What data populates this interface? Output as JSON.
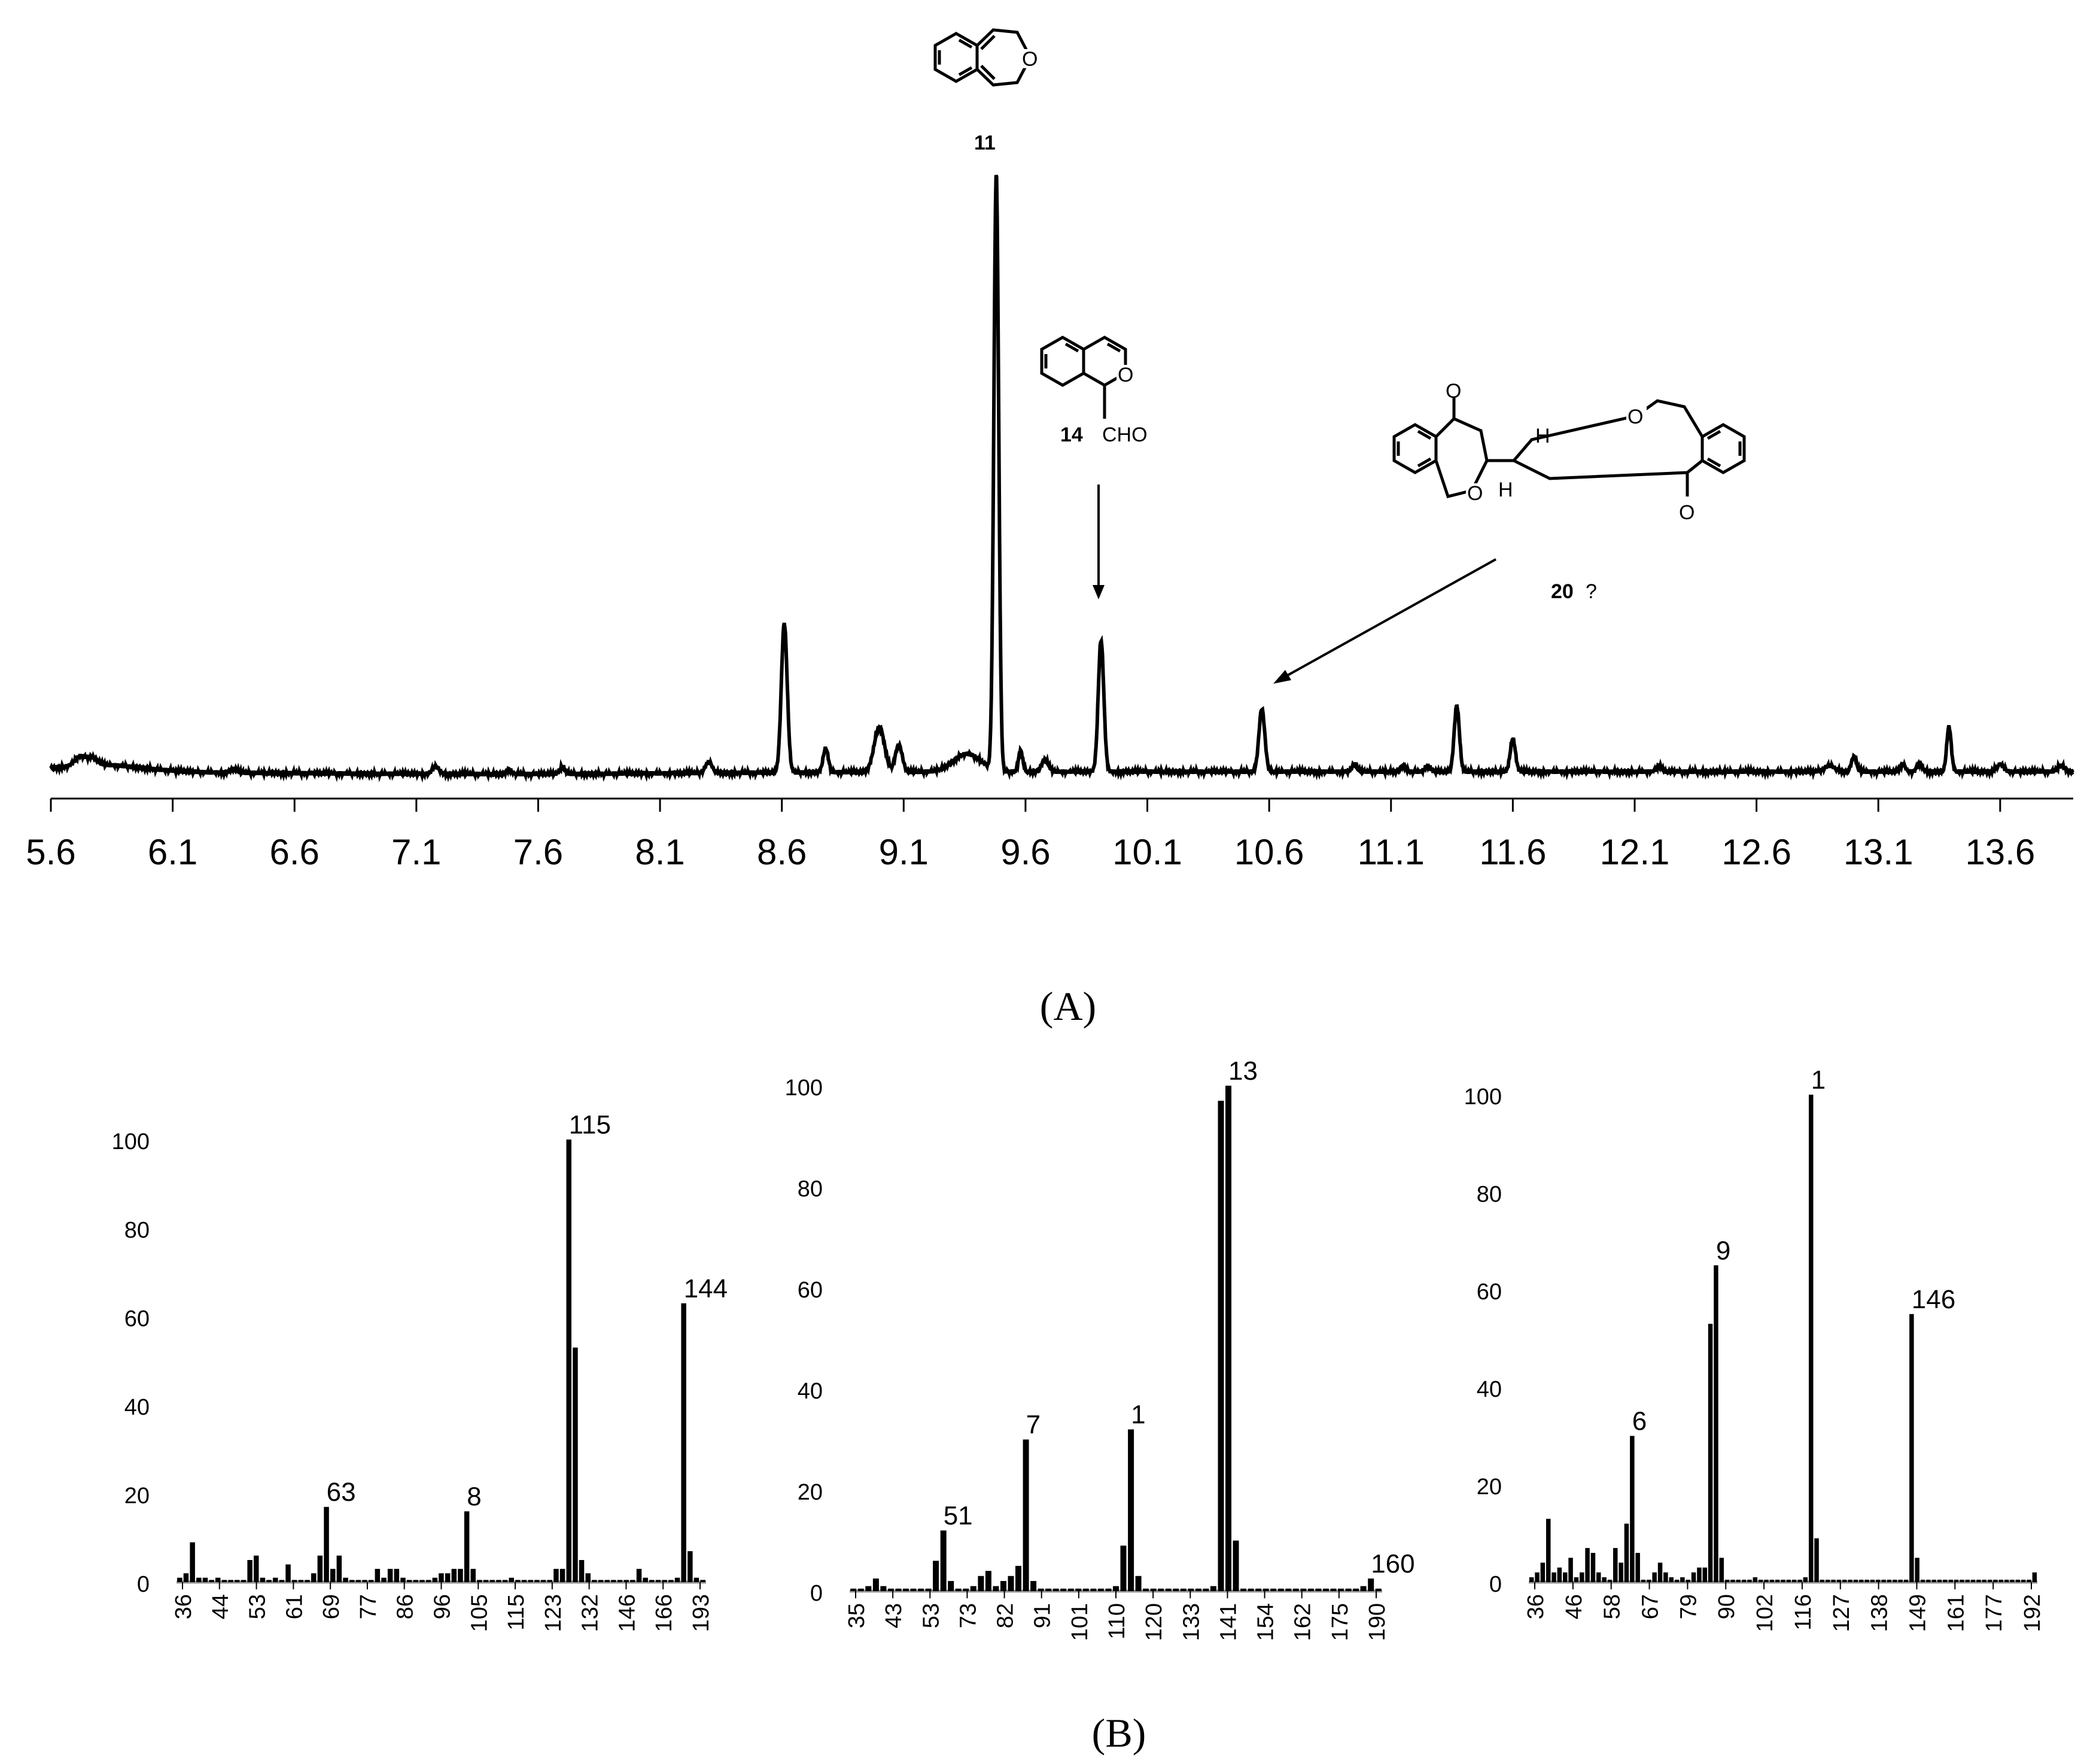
{
  "panel_labels": {
    "a": "(A)",
    "b": "(B)"
  },
  "annotations": {
    "compound_11": "11",
    "compound_14": "14",
    "compound_14_group": "CHO",
    "compound_20": "20",
    "compound_20_query": "?",
    "ring_O": "O",
    "ring_H": "H"
  },
  "chart_data": [
    {
      "type": "line",
      "title": "",
      "xlabel": "",
      "ylabel": "",
      "xlim": [
        5.6,
        13.9
      ],
      "x_ticks": [
        "5.6",
        "6.1",
        "6.6",
        "7.1",
        "7.6",
        "8.1",
        "8.6",
        "9.1",
        "9.6",
        "10.1",
        "10.6",
        "11.1",
        "11.6",
        "12.1",
        "12.6",
        "13.1",
        "13.6"
      ],
      "baseline": 0.025,
      "peaks": [
        {
          "x": 5.72,
          "h": 0.015,
          "w": 0.03
        },
        {
          "x": 5.77,
          "h": 0.012,
          "w": 0.03
        },
        {
          "x": 6.35,
          "h": 0.006,
          "w": 0.02
        },
        {
          "x": 7.18,
          "h": 0.012,
          "w": 0.02
        },
        {
          "x": 7.48,
          "h": 0.008,
          "w": 0.015
        },
        {
          "x": 7.7,
          "h": 0.012,
          "w": 0.015
        },
        {
          "x": 8.3,
          "h": 0.018,
          "w": 0.02
        },
        {
          "x": 8.61,
          "h": 0.25,
          "w": 0.017
        },
        {
          "x": 8.78,
          "h": 0.04,
          "w": 0.015
        },
        {
          "x": 9.0,
          "h": 0.075,
          "w": 0.03
        },
        {
          "x": 9.08,
          "h": 0.045,
          "w": 0.02
        },
        {
          "x": 9.48,
          "h": 1.0,
          "w": 0.014
        },
        {
          "x": 9.36,
          "h": 0.03,
          "w": 0.08
        },
        {
          "x": 9.58,
          "h": 0.035,
          "w": 0.012
        },
        {
          "x": 9.68,
          "h": 0.02,
          "w": 0.02
        },
        {
          "x": 9.91,
          "h": 0.22,
          "w": 0.016
        },
        {
          "x": 10.57,
          "h": 0.105,
          "w": 0.017
        },
        {
          "x": 10.95,
          "h": 0.012,
          "w": 0.015
        },
        {
          "x": 11.15,
          "h": 0.01,
          "w": 0.015
        },
        {
          "x": 11.25,
          "h": 0.01,
          "w": 0.015
        },
        {
          "x": 11.37,
          "h": 0.11,
          "w": 0.015
        },
        {
          "x": 11.6,
          "h": 0.055,
          "w": 0.015
        },
        {
          "x": 12.2,
          "h": 0.01,
          "w": 0.015
        },
        {
          "x": 12.9,
          "h": 0.01,
          "w": 0.03
        },
        {
          "x": 13.0,
          "h": 0.025,
          "w": 0.015
        },
        {
          "x": 13.2,
          "h": 0.012,
          "w": 0.015
        },
        {
          "x": 13.27,
          "h": 0.015,
          "w": 0.015
        },
        {
          "x": 13.39,
          "h": 0.075,
          "w": 0.013
        },
        {
          "x": 13.6,
          "h": 0.012,
          "w": 0.02
        },
        {
          "x": 13.85,
          "h": 0.01,
          "w": 0.02
        }
      ]
    },
    {
      "type": "bar",
      "title": "",
      "xlabel": "",
      "ylabel": "",
      "ylim": [
        0,
        100
      ],
      "y_ticks": [
        "0",
        "20",
        "40",
        "60",
        "80",
        "100"
      ],
      "x_ticks": [
        "36",
        "44",
        "53",
        "61",
        "69",
        "77",
        "86",
        "96",
        "105",
        "115",
        "123",
        "132",
        "146",
        "166",
        "193"
      ],
      "bars": [
        [
          0,
          1
        ],
        [
          1,
          2
        ],
        [
          2,
          9
        ],
        [
          3,
          1
        ],
        [
          4,
          1
        ],
        [
          5,
          0.5
        ],
        [
          6,
          1
        ],
        [
          7,
          0.5
        ],
        [
          8,
          0.5
        ],
        [
          9,
          0.5
        ],
        [
          10,
          0.5
        ],
        [
          11,
          5
        ],
        [
          12,
          6
        ],
        [
          13,
          1
        ],
        [
          14,
          0.5
        ],
        [
          15,
          1
        ],
        [
          16,
          0.5
        ],
        [
          17,
          4
        ],
        [
          18,
          0.5
        ],
        [
          19,
          0.5
        ],
        [
          20,
          0.5
        ],
        [
          21,
          2
        ],
        [
          22,
          6
        ],
        [
          23,
          17
        ],
        [
          24,
          3
        ],
        [
          25,
          6
        ],
        [
          26,
          1
        ],
        [
          27,
          0.5
        ],
        [
          28,
          0.5
        ],
        [
          29,
          0.5
        ],
        [
          30,
          0.5
        ],
        [
          31,
          3
        ],
        [
          32,
          1
        ],
        [
          33,
          3
        ],
        [
          34,
          3
        ],
        [
          35,
          1
        ],
        [
          36,
          0.5
        ],
        [
          37,
          0.5
        ],
        [
          38,
          0.5
        ],
        [
          39,
          0.5
        ],
        [
          40,
          1
        ],
        [
          41,
          2
        ],
        [
          42,
          2
        ],
        [
          43,
          3
        ],
        [
          44,
          3
        ],
        [
          45,
          16
        ],
        [
          46,
          3
        ],
        [
          47,
          0.5
        ],
        [
          48,
          0.5
        ],
        [
          49,
          0.5
        ],
        [
          50,
          0.5
        ],
        [
          51,
          0.5
        ],
        [
          52,
          1
        ],
        [
          53,
          0.5
        ],
        [
          54,
          0.5
        ],
        [
          55,
          0.5
        ],
        [
          56,
          0.5
        ],
        [
          57,
          0.5
        ],
        [
          58,
          0.5
        ],
        [
          59,
          3
        ],
        [
          60,
          3
        ],
        [
          61,
          100
        ],
        [
          62,
          53
        ],
        [
          63,
          5
        ],
        [
          64,
          2
        ],
        [
          65,
          0.5
        ],
        [
          66,
          0.5
        ],
        [
          67,
          0.5
        ],
        [
          68,
          0.5
        ],
        [
          69,
          0.5
        ],
        [
          70,
          0.5
        ],
        [
          71,
          0.5
        ],
        [
          72,
          3
        ],
        [
          73,
          1
        ],
        [
          74,
          0.5
        ],
        [
          75,
          0.5
        ],
        [
          76,
          0.5
        ],
        [
          77,
          0.5
        ],
        [
          78,
          1
        ],
        [
          79,
          63
        ],
        [
          80,
          7
        ],
        [
          81,
          1
        ],
        [
          82,
          0.5
        ]
      ],
      "data_labels": [
        {
          "bar": 23,
          "text": "63"
        },
        {
          "bar": 45,
          "text": "8"
        },
        {
          "bar": 61,
          "text": "115"
        },
        {
          "bar": 79,
          "text": "144"
        }
      ]
    },
    {
      "type": "bar",
      "title": "",
      "xlabel": "",
      "ylabel": "",
      "ylim": [
        0,
        100
      ],
      "y_ticks": [
        "0",
        "20",
        "40",
        "60",
        "80",
        "100"
      ],
      "x_ticks": [
        "35",
        "43",
        "53",
        "73",
        "82",
        "91",
        "101",
        "110",
        "120",
        "133",
        "141",
        "154",
        "162",
        "175",
        "190"
      ],
      "bars": [
        [
          0,
          0.5
        ],
        [
          1,
          0.5
        ],
        [
          2,
          1
        ],
        [
          3,
          2.5
        ],
        [
          4,
          1
        ],
        [
          5,
          0.5
        ],
        [
          6,
          0.5
        ],
        [
          7,
          0.5
        ],
        [
          8,
          0.5
        ],
        [
          9,
          0.5
        ],
        [
          10,
          0.5
        ],
        [
          11,
          6
        ],
        [
          12,
          12
        ],
        [
          13,
          2
        ],
        [
          14,
          0.5
        ],
        [
          15,
          0.5
        ],
        [
          16,
          1
        ],
        [
          17,
          3
        ],
        [
          18,
          4
        ],
        [
          19,
          1
        ],
        [
          20,
          2
        ],
        [
          21,
          3
        ],
        [
          22,
          5
        ],
        [
          23,
          30
        ],
        [
          24,
          2
        ],
        [
          25,
          0.5
        ],
        [
          26,
          0.5
        ],
        [
          27,
          0.5
        ],
        [
          28,
          0.5
        ],
        [
          29,
          0.5
        ],
        [
          30,
          0.5
        ],
        [
          31,
          0.5
        ],
        [
          32,
          0.5
        ],
        [
          33,
          0.5
        ],
        [
          34,
          0.5
        ],
        [
          35,
          1
        ],
        [
          36,
          9
        ],
        [
          37,
          32
        ],
        [
          38,
          3
        ],
        [
          39,
          0.5
        ],
        [
          40,
          0.5
        ],
        [
          41,
          0.5
        ],
        [
          42,
          0.5
        ],
        [
          43,
          0.5
        ],
        [
          44,
          0.5
        ],
        [
          45,
          0.5
        ],
        [
          46,
          0.5
        ],
        [
          47,
          0.5
        ],
        [
          48,
          1
        ],
        [
          49,
          97
        ],
        [
          50,
          100
        ],
        [
          51,
          10
        ],
        [
          52,
          0.5
        ],
        [
          53,
          0.5
        ],
        [
          54,
          0.5
        ],
        [
          55,
          0.5
        ],
        [
          56,
          0.5
        ],
        [
          57,
          0.5
        ],
        [
          58,
          0.5
        ],
        [
          59,
          0.5
        ],
        [
          60,
          0.5
        ],
        [
          61,
          0.5
        ],
        [
          62,
          0.5
        ],
        [
          63,
          0.5
        ],
        [
          64,
          0.5
        ],
        [
          65,
          0.5
        ],
        [
          66,
          0.5
        ],
        [
          67,
          0.5
        ],
        [
          68,
          1
        ],
        [
          69,
          2.5
        ],
        [
          70,
          0.5
        ]
      ],
      "data_labels": [
        {
          "bar": 12,
          "text": "51"
        },
        {
          "bar": 23,
          "text": "7"
        },
        {
          "bar": 37,
          "text": "1"
        },
        {
          "bar": 50,
          "text": "13"
        },
        {
          "bar": 69,
          "text": "160"
        }
      ]
    },
    {
      "type": "bar",
      "title": "",
      "xlabel": "",
      "ylabel": "",
      "ylim": [
        0,
        100
      ],
      "y_ticks": [
        "0",
        "20",
        "40",
        "60",
        "80",
        "100"
      ],
      "x_ticks": [
        "36",
        "46",
        "58",
        "67",
        "79",
        "90",
        "102",
        "116",
        "127",
        "138",
        "149",
        "161",
        "177",
        "192"
      ],
      "bars": [
        [
          0,
          1
        ],
        [
          1,
          2
        ],
        [
          2,
          4
        ],
        [
          3,
          13
        ],
        [
          4,
          2
        ],
        [
          5,
          3
        ],
        [
          6,
          2
        ],
        [
          7,
          5
        ],
        [
          8,
          1
        ],
        [
          9,
          2
        ],
        [
          10,
          7
        ],
        [
          11,
          6
        ],
        [
          12,
          2
        ],
        [
          13,
          1
        ],
        [
          14,
          0.5
        ],
        [
          15,
          7
        ],
        [
          16,
          4
        ],
        [
          17,
          12
        ],
        [
          18,
          30
        ],
        [
          19,
          6
        ],
        [
          20,
          0.5
        ],
        [
          21,
          0.5
        ],
        [
          22,
          2
        ],
        [
          23,
          4
        ],
        [
          24,
          2
        ],
        [
          25,
          1
        ],
        [
          26,
          0.5
        ],
        [
          27,
          1
        ],
        [
          28,
          0.5
        ],
        [
          29,
          2
        ],
        [
          30,
          3
        ],
        [
          31,
          3
        ],
        [
          32,
          53
        ],
        [
          33,
          65
        ],
        [
          34,
          5
        ],
        [
          35,
          0.5
        ],
        [
          36,
          0.5
        ],
        [
          37,
          0.5
        ],
        [
          38,
          0.5
        ],
        [
          39,
          0.5
        ],
        [
          40,
          1
        ],
        [
          41,
          0.5
        ],
        [
          42,
          0.5
        ],
        [
          43,
          0.5
        ],
        [
          44,
          0.5
        ],
        [
          45,
          0.5
        ],
        [
          46,
          0.5
        ],
        [
          47,
          0.5
        ],
        [
          48,
          0.5
        ],
        [
          49,
          1
        ],
        [
          50,
          100
        ],
        [
          51,
          9
        ],
        [
          52,
          0.5
        ],
        [
          53,
          0.5
        ],
        [
          54,
          0.5
        ],
        [
          55,
          0.5
        ],
        [
          56,
          0.5
        ],
        [
          57,
          0.5
        ],
        [
          58,
          0.5
        ],
        [
          59,
          0.5
        ],
        [
          60,
          0.5
        ],
        [
          61,
          0.5
        ],
        [
          62,
          0.5
        ],
        [
          63,
          0.5
        ],
        [
          64,
          0.5
        ],
        [
          65,
          0.5
        ],
        [
          66,
          0.5
        ],
        [
          67,
          0.5
        ],
        [
          68,
          55
        ],
        [
          69,
          5
        ],
        [
          70,
          0.5
        ],
        [
          71,
          0.5
        ],
        [
          72,
          0.5
        ],
        [
          73,
          0.5
        ],
        [
          74,
          0.5
        ],
        [
          75,
          0.5
        ],
        [
          76,
          0.5
        ],
        [
          77,
          0.5
        ],
        [
          78,
          0.5
        ],
        [
          79,
          0.5
        ],
        [
          80,
          0.5
        ],
        [
          81,
          0.5
        ],
        [
          82,
          0.5
        ],
        [
          83,
          0.5
        ],
        [
          84,
          0.5
        ],
        [
          85,
          0.5
        ],
        [
          86,
          0.5
        ],
        [
          87,
          0.5
        ],
        [
          88,
          0.5
        ],
        [
          89,
          0.5
        ],
        [
          90,
          2
        ]
      ],
      "data_labels": [
        {
          "bar": 18,
          "text": "6"
        },
        {
          "bar": 33,
          "text": "9"
        },
        {
          "bar": 50,
          "text": "1"
        },
        {
          "bar": 68,
          "text": "146"
        }
      ]
    }
  ]
}
